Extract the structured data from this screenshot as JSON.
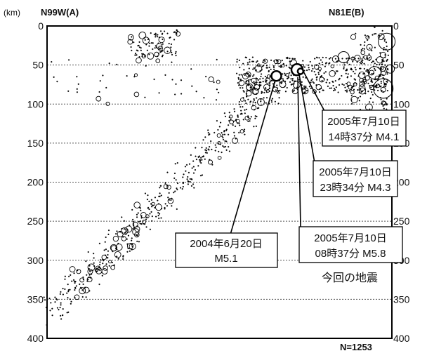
{
  "chart_data": {
    "type": "scatter",
    "unit_label": "(km)",
    "left_label": "N99W(A)",
    "right_label": "N81E(B)",
    "count_label": "N=1253",
    "ylim": [
      0,
      400
    ],
    "y_ticks": [
      "0",
      "50",
      "100",
      "150",
      "200",
      "250",
      "300",
      "350",
      "400"
    ],
    "grid": "horizontal-dotted",
    "x_range": [
      0,
      1
    ],
    "background_points": [],
    "annotations": [
      {
        "line1": "2005年7月10日",
        "line2": "14時37分 M4.1"
      },
      {
        "line1": "2005年7月10日",
        "line2": "23時34分 M4.3"
      },
      {
        "line1": "2004年6月20日",
        "line2": "M5.1"
      },
      {
        "line1": "2005年7月10日",
        "line2": "08時37分 M5.8"
      }
    ],
    "caption": "今回の地震"
  }
}
